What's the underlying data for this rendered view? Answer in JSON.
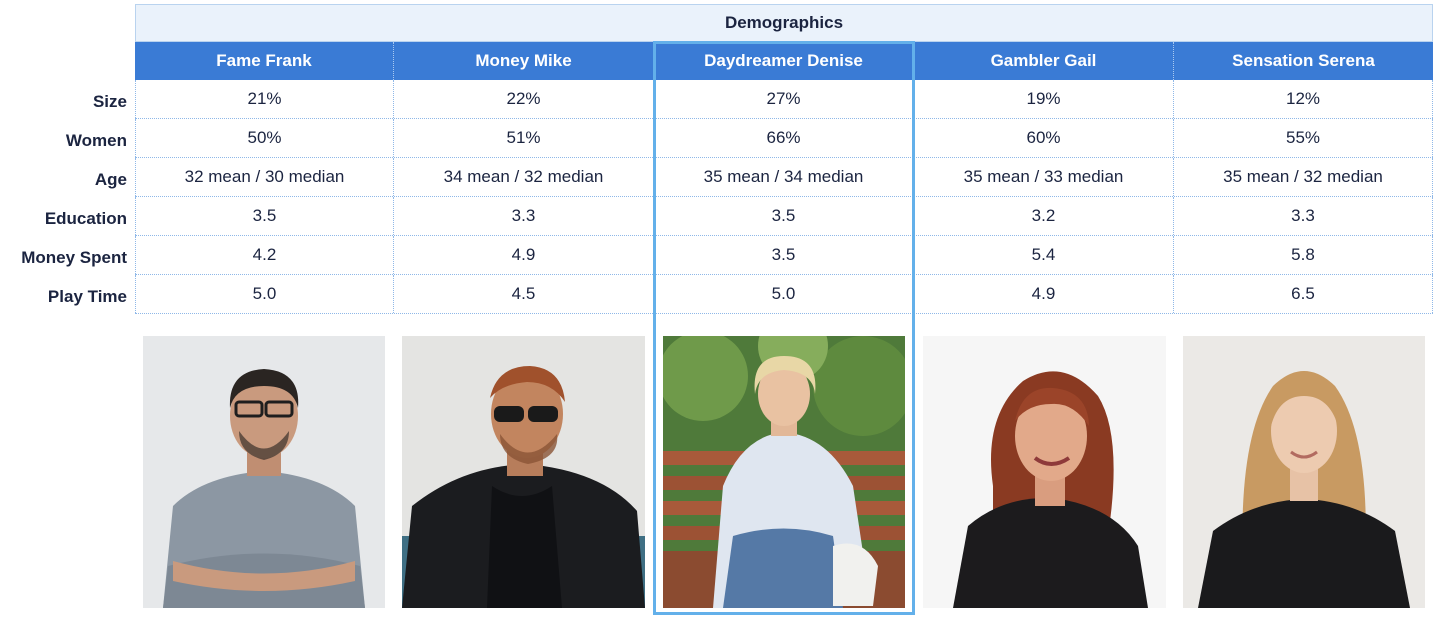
{
  "table": {
    "title": "Demographics",
    "columns": [
      "Fame Frank",
      "Money Mike",
      "Daydreamer Denise",
      "Gambler Gail",
      "Sensation Serena"
    ],
    "highlighted_column": "Daydreamer Denise",
    "rows": [
      {
        "label": "Size",
        "values": [
          "21%",
          "22%",
          "27%",
          "19%",
          "12%"
        ]
      },
      {
        "label": "Women",
        "values": [
          "50%",
          "51%",
          "66%",
          "60%",
          "55%"
        ]
      },
      {
        "label": "Age",
        "values": [
          "32 mean / 30 median",
          "34 mean / 32 median",
          "35 mean / 34 median",
          "35 mean / 33 median",
          "35 mean / 32 median"
        ]
      },
      {
        "label": "Education",
        "values": [
          "3.5",
          "3.3",
          "3.5",
          "3.2",
          "3.3"
        ]
      },
      {
        "label": "Money Spent",
        "values": [
          "4.2",
          "4.9",
          "3.5",
          "5.4",
          "5.8"
        ]
      },
      {
        "label": "Play Time",
        "values": [
          "5.0",
          "4.5",
          "5.0",
          "4.9",
          "6.5"
        ]
      }
    ]
  },
  "colors": {
    "header_blue": "#3a7bd5",
    "title_bg": "#eaf2fb",
    "highlight_border": "#63b0ea",
    "text_dark": "#1b2440"
  }
}
